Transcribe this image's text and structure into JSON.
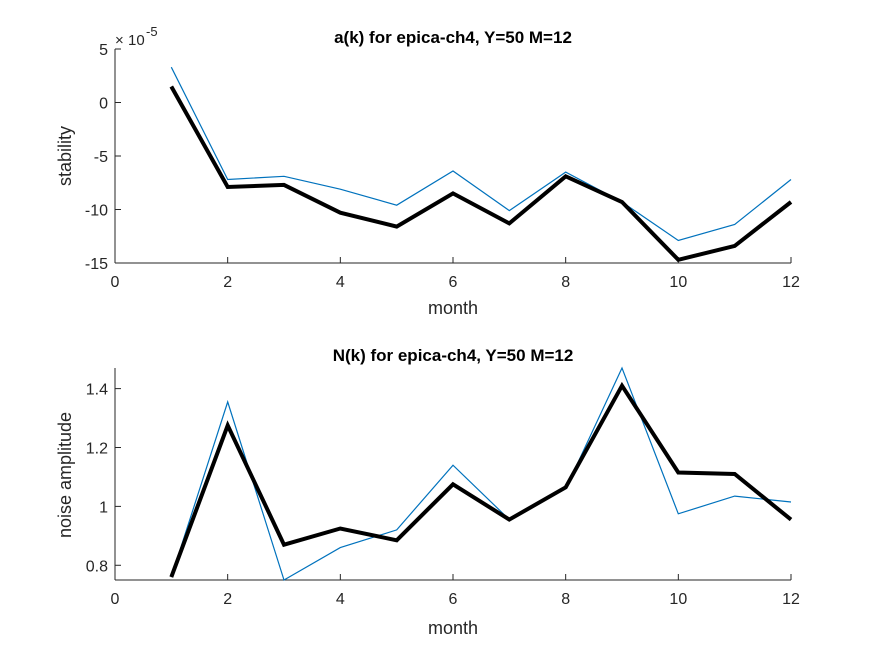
{
  "chart_data": [
    {
      "type": "line",
      "title": "a(k) for epica-ch4, Y=50 M=12",
      "xlabel": "month",
      "ylabel": "stability",
      "exponent_label": "10",
      "exponent_power": "-5",
      "xlim": [
        0,
        12
      ],
      "ylim": [
        -15,
        5
      ],
      "xticks": [
        "0",
        "2",
        "4",
        "6",
        "8",
        "10",
        "12"
      ],
      "yticks": [
        "-15",
        "-10",
        "-5",
        "0",
        "5"
      ],
      "grid": false,
      "x": [
        1,
        2,
        3,
        4,
        5,
        6,
        7,
        8,
        9,
        10,
        11,
        12
      ],
      "series": [
        {
          "color": "#0072bd",
          "width": "thin",
          "values": [
            3.3,
            -7.2,
            -6.9,
            -8.1,
            -9.6,
            -6.4,
            -10.1,
            -6.5,
            -9.3,
            -12.9,
            -11.4,
            -7.2
          ]
        },
        {
          "color": "#000000",
          "width": "thick",
          "values": [
            1.5,
            -7.9,
            -7.7,
            -10.3,
            -11.6,
            -8.5,
            -11.3,
            -6.9,
            -9.3,
            -14.7,
            -13.4,
            -9.3
          ]
        }
      ]
    },
    {
      "type": "line",
      "title": "N(k) for epica-ch4, Y=50 M=12",
      "xlabel": "month",
      "ylabel": "noise amplitude",
      "xlim": [
        0,
        12
      ],
      "ylim": [
        0.75,
        1.47
      ],
      "xticks": [
        "0",
        "2",
        "4",
        "6",
        "8",
        "10",
        "12"
      ],
      "yticks": [
        "0.8",
        "1",
        "1.2",
        "1.4"
      ],
      "grid": false,
      "x": [
        1,
        2,
        3,
        4,
        5,
        6,
        7,
        8,
        9,
        10,
        11,
        12
      ],
      "series": [
        {
          "color": "#0072bd",
          "width": "thin",
          "values": [
            0.76,
            1.355,
            0.75,
            0.86,
            0.92,
            1.14,
            0.955,
            1.06,
            1.47,
            0.975,
            1.035,
            1.015
          ]
        },
        {
          "color": "#000000",
          "width": "thick",
          "values": [
            0.76,
            1.275,
            0.87,
            0.925,
            0.885,
            1.075,
            0.955,
            1.065,
            1.41,
            1.115,
            1.11,
            0.955
          ]
        }
      ]
    }
  ]
}
